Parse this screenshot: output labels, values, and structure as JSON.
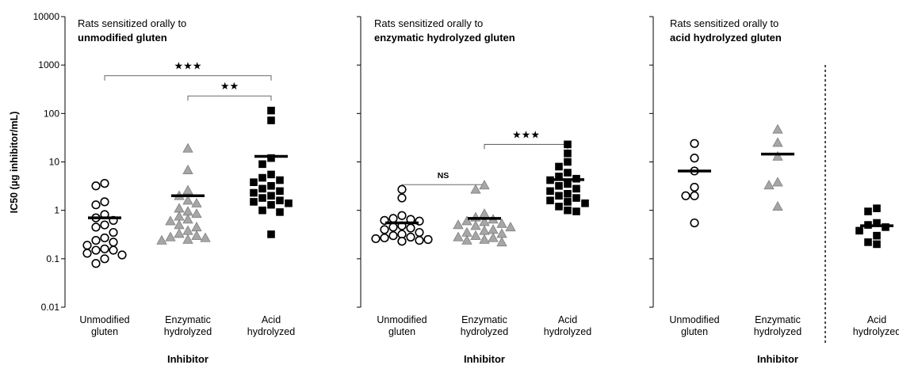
{
  "y_axis": {
    "title": "IC50 (µg inhibitor/mL)",
    "scale": "log",
    "range": [
      0.01,
      10000
    ],
    "ticks": [
      "0.01",
      "0.1",
      "1",
      "10",
      "100",
      "1000",
      "10000"
    ]
  },
  "x_axis_title": "Inhibitor",
  "categories": [
    {
      "line1": "Unmodified",
      "line2": "gluten"
    },
    {
      "line1": "Enzymatic",
      "line2": "hydrolyzed"
    },
    {
      "line1": "Acid",
      "line2": "hydrolyzed"
    }
  ],
  "colors": {
    "circle_fill": "#ffffff",
    "triangle_fill": "#a6a6a6",
    "square_fill": "#000000",
    "stroke": "#000000"
  },
  "chart_data": [
    {
      "type": "scatter",
      "title_line1": "Rats sensitized orally to",
      "title_line2": "unmodified gluten",
      "series": [
        {
          "marker": "circle",
          "mean": 0.7,
          "values": [
            3.6,
            3.2,
            1.5,
            1.3,
            0.82,
            0.7,
            0.62,
            0.5,
            0.45,
            0.35,
            0.27,
            0.24,
            0.22,
            0.19,
            0.16,
            0.15,
            0.15,
            0.13,
            0.12,
            0.1,
            0.08
          ]
        },
        {
          "marker": "triangle",
          "mean": 2.0,
          "values": [
            19,
            6.8,
            2.6,
            2.0,
            1.6,
            1.4,
            1.1,
            0.95,
            0.85,
            0.75,
            0.65,
            0.6,
            0.5,
            0.45,
            0.38,
            0.33,
            0.3,
            0.28,
            0.27,
            0.25,
            0.24
          ]
        },
        {
          "marker": "square",
          "mean": 13,
          "values": [
            115,
            72,
            12,
            9,
            5.5,
            4.7,
            4.2,
            3.8,
            3.2,
            2.8,
            2.5,
            2.3,
            2.0,
            1.8,
            1.6,
            1.5,
            1.4,
            1.3,
            1.0,
            0.92,
            0.32
          ]
        }
      ],
      "comparisons": [
        {
          "from": 0,
          "to": 2,
          "label": "★★★",
          "y": 600
        },
        {
          "from": 1,
          "to": 2,
          "label": "★★",
          "y": 230
        }
      ]
    },
    {
      "type": "scatter",
      "title_line1": "Rats sensitized orally to",
      "title_line2": "enzymatic hydrolyzed gluten",
      "series": [
        {
          "marker": "circle",
          "mean": 0.55,
          "values": [
            2.7,
            1.8,
            0.78,
            0.68,
            0.65,
            0.62,
            0.6,
            0.48,
            0.45,
            0.43,
            0.4,
            0.35,
            0.32,
            0.3,
            0.28,
            0.27,
            0.26,
            0.25,
            0.24,
            0.23,
            0.23
          ]
        },
        {
          "marker": "triangle",
          "mean": 0.68,
          "values": [
            3.3,
            2.7,
            0.85,
            0.72,
            0.65,
            0.6,
            0.58,
            0.53,
            0.5,
            0.48,
            0.45,
            0.4,
            0.38,
            0.35,
            0.33,
            0.3,
            0.28,
            0.27,
            0.25,
            0.24,
            0.22
          ]
        },
        {
          "marker": "square",
          "mean": 4.3,
          "values": [
            23,
            15,
            10,
            8,
            6,
            5,
            4.5,
            4.2,
            3.5,
            3.2,
            2.8,
            2.5,
            2.2,
            2.0,
            1.8,
            1.6,
            1.5,
            1.4,
            1.2,
            1.0,
            0.95
          ]
        }
      ],
      "comparisons": [
        {
          "from": 1,
          "to": 2,
          "label": "★★★",
          "y": 23
        },
        {
          "from": 0,
          "to": 1,
          "label": "NS",
          "y": 3.4
        }
      ]
    },
    {
      "type": "scatter",
      "title_line1": "Rats sensitized orally to",
      "title_line2": "acid hydrolyzed gluten",
      "series": [
        {
          "marker": "circle",
          "mean": 6.5,
          "values": [
            24,
            12,
            6.5,
            3.0,
            2.0,
            2.0,
            0.55
          ]
        },
        {
          "marker": "triangle",
          "mean": 14.5,
          "values": [
            47,
            25,
            13,
            3.8,
            3.3,
            1.2
          ]
        },
        {
          "marker": "square",
          "mean": 0.48,
          "values": [
            1.1,
            0.95,
            0.55,
            0.5,
            0.45,
            0.38,
            0.3,
            0.22,
            0.2
          ]
        }
      ],
      "comparisons": []
    }
  ]
}
